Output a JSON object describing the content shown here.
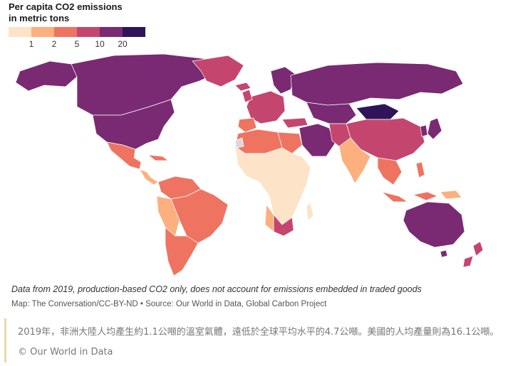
{
  "legend": {
    "title_line1": "Per capita CO2 emissions",
    "title_line2": "in metric tons",
    "colors": [
      "#fde3c8",
      "#fbb07d",
      "#ef7361",
      "#c4466f",
      "#7a2a73",
      "#2f1459"
    ],
    "ticks": [
      "1",
      "2",
      "5",
      "10",
      "20"
    ]
  },
  "map": {
    "categories": {
      "c1": "#fde3c8",
      "c2": "#fbb07d",
      "c3": "#ef7361",
      "c4": "#c4466f",
      "c5": "#7a2a73",
      "c6": "#2f1459",
      "nodata": "#d9d9d9"
    }
  },
  "caption": "Data from 2019, production-based CO2 only, does not account for emissions embedded in traded goods",
  "credit": "Map: The Conversation/CC-BY-ND • Source: Our World in Data, Global Carbon Project",
  "note": "2019年，非洲大陸人均產生約1.1公噸的溫室氣體，遠低於全球平均水平的4.7公噸。美國的人均產量則為16.1公噸。 © Our World in Data"
}
